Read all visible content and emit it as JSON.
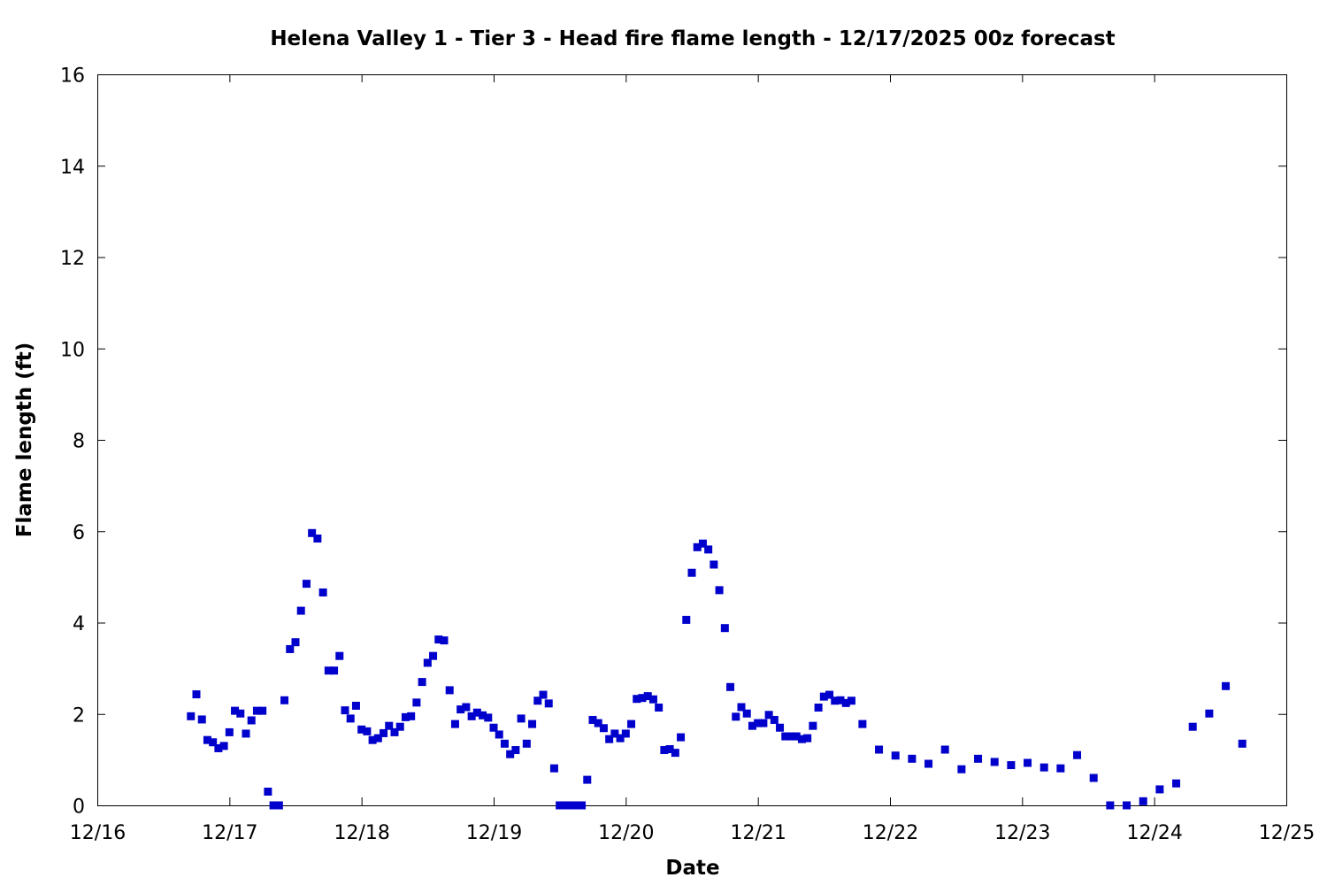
{
  "chart_data": {
    "type": "scatter",
    "title": "Helena Valley 1 - Tier 3 - Head fire flame length - 12/17/2025 00z forecast",
    "xlabel": "Date",
    "ylabel": "Flame length (ft)",
    "xlim": [
      "12/16 00:00",
      "12/25 00:00"
    ],
    "ylim": [
      0,
      16
    ],
    "x_ticks": [
      "12/16",
      "12/17",
      "12/18",
      "12/19",
      "12/20",
      "12/21",
      "12/22",
      "12/23",
      "12/24",
      "12/25"
    ],
    "y_ticks": [
      "0",
      "2",
      "4",
      "6",
      "8",
      "10",
      "12",
      "14",
      "16"
    ],
    "marker_color": "#0000cc",
    "grid": false,
    "legend": "none",
    "points": [
      [
        "12/16 17:00",
        1.95
      ],
      [
        "12/16 18:00",
        2.43
      ],
      [
        "12/16 19:00",
        1.88
      ],
      [
        "12/16 20:00",
        1.43
      ],
      [
        "12/16 21:00",
        1.38
      ],
      [
        "12/16 22:00",
        1.25
      ],
      [
        "12/16 23:00",
        1.3
      ],
      [
        "12/17 00:00",
        1.6
      ],
      [
        "12/17 01:00",
        2.07
      ],
      [
        "12/17 02:00",
        2.01
      ],
      [
        "12/17 03:00",
        1.57
      ],
      [
        "12/17 04:00",
        1.86
      ],
      [
        "12/17 05:00",
        2.07
      ],
      [
        "12/17 06:00",
        2.07
      ],
      [
        "12/17 07:00",
        0.3
      ],
      [
        "12/17 08:00",
        0.0
      ],
      [
        "12/17 09:00",
        0.0
      ],
      [
        "12/17 10:00",
        2.3
      ],
      [
        "12/17 11:00",
        3.42
      ],
      [
        "12/17 12:00",
        3.57
      ],
      [
        "12/17 13:00",
        4.26
      ],
      [
        "12/17 14:00",
        4.85
      ],
      [
        "12/17 15:00",
        5.96
      ],
      [
        "12/17 16:00",
        5.84
      ],
      [
        "12/17 17:00",
        4.66
      ],
      [
        "12/17 18:00",
        2.95
      ],
      [
        "12/17 19:00",
        2.95
      ],
      [
        "12/17 20:00",
        3.27
      ],
      [
        "12/17 21:00",
        2.08
      ],
      [
        "12/17 22:00",
        1.9
      ],
      [
        "12/17 23:00",
        2.18
      ],
      [
        "12/18 00:00",
        1.66
      ],
      [
        "12/18 01:00",
        1.62
      ],
      [
        "12/18 02:00",
        1.43
      ],
      [
        "12/18 03:00",
        1.47
      ],
      [
        "12/18 04:00",
        1.58
      ],
      [
        "12/18 05:00",
        1.74
      ],
      [
        "12/18 06:00",
        1.6
      ],
      [
        "12/18 07:00",
        1.72
      ],
      [
        "12/18 08:00",
        1.93
      ],
      [
        "12/18 09:00",
        1.95
      ],
      [
        "12/18 10:00",
        2.25
      ],
      [
        "12/18 11:00",
        2.7
      ],
      [
        "12/18 12:00",
        3.12
      ],
      [
        "12/18 13:00",
        3.27
      ],
      [
        "12/18 14:00",
        3.63
      ],
      [
        "12/18 15:00",
        3.61
      ],
      [
        "12/18 16:00",
        2.52
      ],
      [
        "12/18 17:00",
        1.78
      ],
      [
        "12/18 18:00",
        2.1
      ],
      [
        "12/18 19:00",
        2.15
      ],
      [
        "12/18 20:00",
        1.95
      ],
      [
        "12/18 21:00",
        2.03
      ],
      [
        "12/18 22:00",
        1.97
      ],
      [
        "12/18 23:00",
        1.92
      ],
      [
        "12/19 00:00",
        1.7
      ],
      [
        "12/19 01:00",
        1.55
      ],
      [
        "12/19 02:00",
        1.35
      ],
      [
        "12/19 03:00",
        1.12
      ],
      [
        "12/19 04:00",
        1.21
      ],
      [
        "12/19 05:00",
        1.9
      ],
      [
        "12/19 06:00",
        1.35
      ],
      [
        "12/19 07:00",
        1.78
      ],
      [
        "12/19 08:00",
        2.29
      ],
      [
        "12/19 09:00",
        2.42
      ],
      [
        "12/19 10:00",
        2.23
      ],
      [
        "12/19 11:00",
        0.81
      ],
      [
        "12/19 12:00",
        0.0
      ],
      [
        "12/19 13:00",
        0.0
      ],
      [
        "12/19 14:00",
        0.0
      ],
      [
        "12/19 15:00",
        0.0
      ],
      [
        "12/19 16:00",
        0.0
      ],
      [
        "12/19 17:00",
        0.56
      ],
      [
        "12/19 18:00",
        1.87
      ],
      [
        "12/19 19:00",
        1.8
      ],
      [
        "12/19 20:00",
        1.69
      ],
      [
        "12/19 21:00",
        1.45
      ],
      [
        "12/19 22:00",
        1.57
      ],
      [
        "12/19 23:00",
        1.47
      ],
      [
        "12/20 00:00",
        1.57
      ],
      [
        "12/20 01:00",
        1.78
      ],
      [
        "12/20 02:00",
        2.33
      ],
      [
        "12/20 03:00",
        2.35
      ],
      [
        "12/20 04:00",
        2.39
      ],
      [
        "12/20 05:00",
        2.32
      ],
      [
        "12/20 06:00",
        2.14
      ],
      [
        "12/20 07:00",
        1.21
      ],
      [
        "12/20 08:00",
        1.23
      ],
      [
        "12/20 09:00",
        1.15
      ],
      [
        "12/20 10:00",
        1.49
      ],
      [
        "12/20 11:00",
        4.06
      ],
      [
        "12/20 12:00",
        5.09
      ],
      [
        "12/20 13:00",
        5.65
      ],
      [
        "12/20 14:00",
        5.73
      ],
      [
        "12/20 15:00",
        5.6
      ],
      [
        "12/20 16:00",
        5.27
      ],
      [
        "12/20 17:00",
        4.71
      ],
      [
        "12/20 18:00",
        3.88
      ],
      [
        "12/20 19:00",
        2.59
      ],
      [
        "12/20 20:00",
        1.94
      ],
      [
        "12/20 21:00",
        2.15
      ],
      [
        "12/20 22:00",
        2.01
      ],
      [
        "12/20 23:00",
        1.74
      ],
      [
        "12/21 00:00",
        1.8
      ],
      [
        "12/21 01:00",
        1.8
      ],
      [
        "12/21 02:00",
        1.98
      ],
      [
        "12/21 03:00",
        1.87
      ],
      [
        "12/21 04:00",
        1.7
      ],
      [
        "12/21 05:00",
        1.51
      ],
      [
        "12/21 06:00",
        1.51
      ],
      [
        "12/21 07:00",
        1.51
      ],
      [
        "12/21 08:00",
        1.45
      ],
      [
        "12/21 09:00",
        1.47
      ],
      [
        "12/21 10:00",
        1.74
      ],
      [
        "12/21 11:00",
        2.14
      ],
      [
        "12/21 12:00",
        2.38
      ],
      [
        "12/21 13:00",
        2.42
      ],
      [
        "12/21 14:00",
        2.29
      ],
      [
        "12/21 15:00",
        2.3
      ],
      [
        "12/21 16:00",
        2.24
      ],
      [
        "12/21 17:00",
        2.29
      ],
      [
        "12/21 19:00",
        1.78
      ],
      [
        "12/21 22:00",
        1.22
      ],
      [
        "12/22 01:00",
        1.09
      ],
      [
        "12/22 04:00",
        1.02
      ],
      [
        "12/22 07:00",
        0.91
      ],
      [
        "12/22 10:00",
        1.22
      ],
      [
        "12/22 13:00",
        0.79
      ],
      [
        "12/22 16:00",
        1.02
      ],
      [
        "12/22 19:00",
        0.95
      ],
      [
        "12/22 22:00",
        0.88
      ],
      [
        "12/23 01:00",
        0.93
      ],
      [
        "12/23 04:00",
        0.83
      ],
      [
        "12/23 07:00",
        0.81
      ],
      [
        "12/23 10:00",
        1.1
      ],
      [
        "12/23 13:00",
        0.6
      ],
      [
        "12/23 16:00",
        0.0
      ],
      [
        "12/23 19:00",
        0.0
      ],
      [
        "12/23 22:00",
        0.09
      ],
      [
        "12/24 01:00",
        0.35
      ],
      [
        "12/24 04:00",
        0.48
      ],
      [
        "12/24 07:00",
        1.72
      ],
      [
        "12/24 10:00",
        2.01
      ],
      [
        "12/24 13:00",
        2.61
      ],
      [
        "12/24 16:00",
        1.35
      ]
    ]
  }
}
